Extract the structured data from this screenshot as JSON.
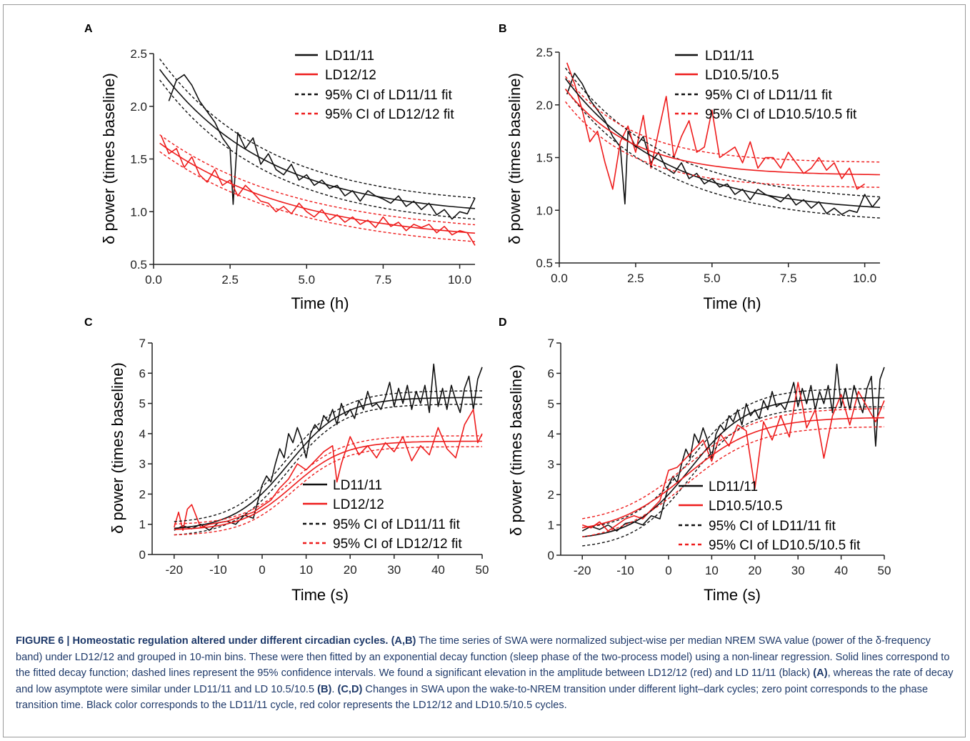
{
  "colors": {
    "black_series": "#111111",
    "red_series": "#ee1c1c",
    "caption_text": "#1f3a6a",
    "frame": "#9a9a9a"
  },
  "panels": [
    {
      "id": "A",
      "label": "A",
      "xlabel": "Time (h)",
      "ylabel": "δ power (times baseline)",
      "xticks": [
        "0.0",
        "2.5",
        "5.0",
        "7.5",
        "10.0"
      ],
      "yticks": [
        "0.5",
        "1.0",
        "1.5",
        "2.0",
        "2.5"
      ],
      "legend": [
        "LD11/11",
        "LD12/12",
        "95% CI of LD11/11 fit",
        "95% CI of LD12/12 fit"
      ]
    },
    {
      "id": "B",
      "label": "B",
      "xlabel": "Time (h)",
      "ylabel": "δ power (times baseline)",
      "xticks": [
        "0.0",
        "2.5",
        "5.0",
        "7.5",
        "10.0"
      ],
      "yticks": [
        "0.5",
        "1.0",
        "1.5",
        "2.0",
        "2.5"
      ],
      "legend": [
        "LD11/11",
        "LD10.5/10.5",
        "95% CI of LD11/11 fit",
        "95% CI of LD10.5/10.5 fit"
      ]
    },
    {
      "id": "C",
      "label": "C",
      "xlabel": "Time (s)",
      "ylabel": "δ power (times baseline)",
      "xticks": [
        "-20",
        "-10",
        "0",
        "10",
        "20",
        "30",
        "40",
        "50"
      ],
      "yticks": [
        "0",
        "1",
        "2",
        "3",
        "4",
        "5",
        "6",
        "7"
      ],
      "legend": [
        "LD11/11",
        "LD12/12",
        "95% CI of LD11/11 fit",
        "95% CI of LD12/12 fit"
      ]
    },
    {
      "id": "D",
      "label": "D",
      "xlabel": "Time (s)",
      "ylabel": "δ power (times baseline)",
      "xticks": [
        "-20",
        "-10",
        "0",
        "10",
        "20",
        "30",
        "40",
        "50"
      ],
      "yticks": [
        "0",
        "1",
        "2",
        "3",
        "4",
        "5",
        "6",
        "7"
      ],
      "legend": [
        "LD11/11",
        "LD10.5/10.5",
        "95% CI of LD11/11 fit",
        "95% CI of LD10.5/10.5 fit"
      ]
    }
  ],
  "chart_data": [
    {
      "panel": "A",
      "type": "line",
      "xlim": [
        0,
        10.5
      ],
      "ylim": [
        0.5,
        2.5
      ],
      "series": [
        {
          "name": "LD11/11",
          "color": "#111111",
          "style": "solid",
          "kind": "raw",
          "x": [
            0.5,
            0.75,
            1.0,
            1.25,
            1.5,
            1.75,
            2.0,
            2.25,
            2.5,
            2.6,
            2.75,
            3.0,
            3.25,
            3.5,
            3.75,
            4.0,
            4.25,
            4.5,
            4.75,
            5.0,
            5.25,
            5.5,
            5.75,
            6.0,
            6.25,
            6.5,
            6.75,
            7.0,
            7.25,
            7.5,
            7.75,
            8.0,
            8.25,
            8.5,
            8.75,
            9.0,
            9.25,
            9.5,
            9.75,
            10.0,
            10.25,
            10.5
          ],
          "y": [
            2.05,
            2.25,
            2.3,
            2.2,
            2.05,
            1.95,
            1.85,
            1.7,
            1.6,
            1.07,
            1.75,
            1.6,
            1.7,
            1.45,
            1.55,
            1.4,
            1.35,
            1.45,
            1.3,
            1.35,
            1.25,
            1.3,
            1.22,
            1.25,
            1.15,
            1.2,
            1.1,
            1.2,
            1.15,
            1.12,
            1.08,
            1.15,
            1.05,
            1.1,
            1.02,
            1.08,
            0.97,
            1.02,
            0.93,
            1.0,
            0.98,
            1.13
          ]
        },
        {
          "name": "LD12/12",
          "color": "#ee1c1c",
          "style": "solid",
          "kind": "raw",
          "x": [
            0.25,
            0.5,
            0.75,
            1.0,
            1.25,
            1.5,
            1.75,
            2.0,
            2.25,
            2.5,
            2.75,
            3.0,
            3.25,
            3.5,
            3.75,
            4.0,
            4.25,
            4.5,
            4.75,
            5.0,
            5.25,
            5.5,
            5.75,
            6.0,
            6.25,
            6.5,
            6.75,
            7.0,
            7.25,
            7.5,
            7.75,
            8.0,
            8.25,
            8.5,
            8.75,
            9.0,
            9.25,
            9.5,
            9.75,
            10.0,
            10.25,
            10.5
          ],
          "y": [
            1.72,
            1.55,
            1.6,
            1.42,
            1.52,
            1.35,
            1.28,
            1.4,
            1.25,
            1.3,
            1.15,
            1.25,
            1.18,
            1.1,
            1.08,
            1.0,
            1.05,
            0.98,
            1.08,
            1.0,
            0.95,
            1.02,
            0.92,
            0.97,
            0.9,
            0.95,
            0.88,
            0.92,
            0.85,
            0.95,
            0.86,
            0.9,
            0.82,
            0.88,
            0.85,
            0.88,
            0.8,
            0.86,
            0.78,
            0.82,
            0.8,
            0.68
          ]
        },
        {
          "name": "LD11/11 fit",
          "color": "#111111",
          "style": "fit",
          "model": "decay",
          "x0": 0.2,
          "y0": 2.35,
          "asym": 0.95,
          "tau": 3.6,
          "ci": 0.1
        },
        {
          "name": "LD12/12 fit",
          "color": "#ee1c1c",
          "style": "fit",
          "model": "decay",
          "x0": 0.2,
          "y0": 1.65,
          "asym": 0.7,
          "tau": 4.5,
          "ci": 0.08
        }
      ]
    },
    {
      "panel": "B",
      "type": "line",
      "xlim": [
        0,
        10.5
      ],
      "ylim": [
        0.5,
        2.5
      ],
      "series": [
        {
          "name": "LD11/11",
          "color": "#111111",
          "style": "solid",
          "kind": "raw",
          "x": [
            0.25,
            0.5,
            0.75,
            1.0,
            1.25,
            1.5,
            1.75,
            2.0,
            2.15,
            2.25,
            2.5,
            2.75,
            3.0,
            3.25,
            3.5,
            3.75,
            4.0,
            4.25,
            4.5,
            4.75,
            5.0,
            5.25,
            5.5,
            5.75,
            6.0,
            6.25,
            6.5,
            6.75,
            7.0,
            7.25,
            7.5,
            7.75,
            8.0,
            8.25,
            8.5,
            8.75,
            9.0,
            9.25,
            9.5,
            9.75,
            10.0,
            10.25,
            10.5
          ],
          "y": [
            2.1,
            2.3,
            2.2,
            2.05,
            1.95,
            1.85,
            1.7,
            1.6,
            1.06,
            1.75,
            1.6,
            1.7,
            1.45,
            1.55,
            1.4,
            1.35,
            1.45,
            1.3,
            1.35,
            1.25,
            1.3,
            1.22,
            1.25,
            1.15,
            1.2,
            1.1,
            1.2,
            1.15,
            1.12,
            1.08,
            1.15,
            1.05,
            1.1,
            1.02,
            1.08,
            0.97,
            1.02,
            0.96,
            1.0,
            0.98,
            1.15,
            1.03,
            1.12
          ]
        },
        {
          "name": "LD10.5/10.5",
          "color": "#ee1c1c",
          "style": "solid",
          "kind": "raw",
          "x": [
            0.25,
            0.5,
            0.75,
            1.0,
            1.25,
            1.5,
            1.75,
            2.0,
            2.25,
            2.5,
            2.75,
            3.0,
            3.25,
            3.5,
            3.75,
            4.0,
            4.25,
            4.5,
            4.75,
            5.0,
            5.25,
            5.5,
            5.75,
            6.0,
            6.25,
            6.5,
            6.75,
            7.0,
            7.25,
            7.5,
            7.75,
            8.0,
            8.25,
            8.5,
            8.75,
            9.0,
            9.25,
            9.5,
            9.75,
            10.0
          ],
          "y": [
            2.4,
            2.2,
            1.95,
            1.65,
            1.75,
            1.45,
            1.2,
            1.65,
            1.8,
            1.55,
            1.9,
            1.4,
            1.75,
            2.08,
            1.5,
            1.7,
            1.85,
            1.55,
            1.6,
            1.95,
            1.5,
            1.55,
            1.6,
            1.45,
            1.65,
            1.4,
            1.5,
            1.5,
            1.4,
            1.55,
            1.45,
            1.35,
            1.4,
            1.5,
            1.38,
            1.45,
            1.3,
            1.4,
            1.2,
            1.25
          ]
        },
        {
          "name": "LD11/11 fit",
          "color": "#111111",
          "style": "fit",
          "model": "decay",
          "x0": 0.2,
          "y0": 2.25,
          "asym": 0.97,
          "tau": 3.3,
          "ci": 0.1
        },
        {
          "name": "LD10.5/10.5 fit",
          "color": "#ee1c1c",
          "style": "fit",
          "model": "decay",
          "x0": 0.2,
          "y0": 2.15,
          "asym": 1.33,
          "tau": 2.2,
          "ci": 0.12
        }
      ]
    },
    {
      "panel": "C",
      "type": "line",
      "xlim": [
        -25,
        50
      ],
      "ylim": [
        0,
        7
      ],
      "series": [
        {
          "name": "LD11/11",
          "color": "#111111",
          "style": "solid",
          "kind": "raw",
          "x": [
            -20,
            -18,
            -16,
            -14,
            -12,
            -10,
            -8,
            -6,
            -4,
            -2,
            0,
            1,
            2,
            3,
            4,
            5,
            6,
            7,
            8,
            9,
            10,
            11,
            12,
            13,
            14,
            15,
            16,
            17,
            18,
            19,
            20,
            21,
            22,
            23,
            24,
            25,
            26,
            27,
            28,
            29,
            30,
            31,
            32,
            33,
            34,
            35,
            36,
            37,
            38,
            39,
            40,
            41,
            42,
            43,
            44,
            45,
            46,
            47,
            48,
            49,
            50
          ],
          "y": [
            0.8,
            0.95,
            0.85,
            1.0,
            0.8,
            1.05,
            1.1,
            1.0,
            1.3,
            1.2,
            2.3,
            2.6,
            2.4,
            3.0,
            3.5,
            3.2,
            4.0,
            3.7,
            4.2,
            3.8,
            3.2,
            4.0,
            4.3,
            4.1,
            4.6,
            4.4,
            4.8,
            4.3,
            5.0,
            4.6,
            4.8,
            4.5,
            5.1,
            4.8,
            5.4,
            4.9,
            5.0,
            4.8,
            5.2,
            5.7,
            4.9,
            5.5,
            5.0,
            5.6,
            4.8,
            5.4,
            5.0,
            5.6,
            4.7,
            6.3,
            4.9,
            5.5,
            4.8,
            5.6,
            5.1,
            4.7,
            5.5,
            5.9,
            4.8,
            5.8,
            6.2
          ]
        },
        {
          "name": "LD12/12",
          "color": "#ee1c1c",
          "style": "solid",
          "kind": "raw",
          "x": [
            -20,
            -19,
            -18,
            -17,
            -16,
            -14,
            -12,
            -10,
            -8,
            -6,
            -4,
            -2,
            0,
            2,
            4,
            6,
            8,
            10,
            12,
            14,
            16,
            17,
            18,
            20,
            22,
            24,
            26,
            28,
            30,
            32,
            34,
            36,
            38,
            40,
            42,
            44,
            46,
            48,
            49,
            50
          ],
          "y": [
            0.9,
            1.4,
            0.8,
            1.5,
            1.65,
            0.9,
            1.0,
            1.05,
            1.1,
            1.2,
            1.3,
            1.4,
            1.6,
            1.8,
            2.2,
            2.5,
            3.0,
            2.8,
            3.1,
            3.4,
            3.6,
            2.4,
            3.0,
            3.9,
            3.3,
            3.6,
            3.2,
            3.7,
            3.4,
            3.9,
            3.1,
            3.6,
            3.3,
            4.2,
            3.5,
            3.2,
            4.3,
            4.8,
            3.7,
            4.0
          ]
        },
        {
          "name": "LD11/11 fit",
          "color": "#111111",
          "style": "fit",
          "model": "sigmoid",
          "lo": 0.8,
          "hi": 5.2,
          "mid": 6,
          "k": 0.16,
          "ci": 0.22
        },
        {
          "name": "LD12/12 fit",
          "color": "#ee1c1c",
          "style": "fit",
          "model": "sigmoid",
          "lo": 0.8,
          "hi": 3.75,
          "mid": 7,
          "k": 0.17,
          "ci": 0.18
        }
      ]
    },
    {
      "panel": "D",
      "type": "line",
      "xlim": [
        -25,
        50
      ],
      "ylim": [
        0,
        7
      ],
      "series": [
        {
          "name": "LD11/11",
          "color": "#111111",
          "style": "solid",
          "kind": "raw",
          "x": [
            -20,
            -18,
            -16,
            -14,
            -12,
            -10,
            -8,
            -6,
            -4,
            -2,
            0,
            1,
            2,
            3,
            4,
            5,
            6,
            7,
            8,
            9,
            10,
            11,
            12,
            13,
            14,
            15,
            16,
            17,
            18,
            19,
            20,
            21,
            22,
            23,
            24,
            25,
            26,
            27,
            28,
            29,
            30,
            31,
            32,
            33,
            34,
            35,
            36,
            37,
            38,
            39,
            40,
            41,
            42,
            43,
            44,
            45,
            46,
            47,
            48,
            49,
            50
          ],
          "y": [
            0.8,
            0.95,
            0.85,
            1.0,
            0.8,
            1.05,
            1.1,
            1.0,
            1.3,
            1.2,
            2.3,
            2.6,
            2.4,
            3.0,
            3.5,
            3.2,
            4.0,
            3.7,
            4.2,
            3.8,
            3.2,
            4.0,
            4.3,
            4.1,
            4.6,
            4.4,
            4.8,
            4.3,
            5.0,
            4.6,
            4.8,
            4.5,
            5.1,
            4.8,
            5.4,
            4.9,
            5.0,
            4.8,
            5.2,
            5.7,
            4.9,
            5.5,
            5.0,
            5.6,
            4.8,
            5.4,
            5.0,
            5.6,
            4.7,
            6.3,
            4.9,
            5.5,
            4.8,
            5.6,
            5.1,
            4.7,
            5.5,
            5.9,
            3.6,
            5.8,
            6.2
          ]
        },
        {
          "name": "LD10.5/10.5",
          "color": "#ee1c1c",
          "style": "solid",
          "kind": "raw",
          "x": [
            -20,
            -18,
            -16,
            -14,
            -12,
            -10,
            -8,
            -6,
            -4,
            -2,
            0,
            2,
            4,
            6,
            8,
            10,
            12,
            14,
            16,
            18,
            20,
            22,
            24,
            26,
            28,
            30,
            32,
            34,
            36,
            38,
            40,
            42,
            44,
            46,
            48,
            50
          ],
          "y": [
            1.0,
            0.9,
            1.1,
            0.8,
            1.0,
            1.2,
            1.3,
            1.2,
            1.5,
            1.8,
            2.8,
            2.9,
            3.2,
            3.5,
            3.8,
            3.1,
            4.0,
            3.6,
            4.3,
            4.1,
            2.2,
            4.4,
            3.8,
            4.6,
            3.9,
            5.7,
            4.2,
            4.8,
            3.2,
            4.6,
            5.3,
            4.3,
            5.4,
            4.9,
            4.4,
            5.1
          ]
        },
        {
          "name": "LD11/11 fit",
          "color": "#111111",
          "style": "fit",
          "model": "sigmoid",
          "lo": 0.5,
          "hi": 5.2,
          "mid": 5,
          "k": 0.15,
          "ci": 0.3
        },
        {
          "name": "LD10.5/10.5 fit",
          "color": "#ee1c1c",
          "style": "fit",
          "model": "sigmoid",
          "lo": 0.7,
          "hi": 4.55,
          "mid": 4,
          "k": 0.12,
          "ci": 0.3
        }
      ]
    }
  ],
  "caption": {
    "figure_label": "FIGURE 6 | Homeostatic regulation altered under different circadian cycles.",
    "ref_ab": "(A,B)",
    "text_1": " The time series of SWA were normalized subject-wise per median NREM SWA value (power of the δ-frequency band) under LD12/12 and grouped in 10-min bins. These were then fitted by an exponential decay function (sleep phase of the two-process model) using a non-linear regression. Solid lines correspond to the fitted decay function; dashed lines represent the 95% confidence intervals. We found a significant elevation in the amplitude between LD12/12 (red) and LD 11/11 (black) ",
    "ref_a": "(A)",
    "text_2": ", whereas the rate of decay and low asymptote were similar under LD11/11 and LD 10.5/10.5 ",
    "ref_b": "(B)",
    "text_3": ". ",
    "ref_cd": "(C,D)",
    "text_4": " Changes in SWA upon the wake-to-NREM transition under different light–dark cycles; zero point corresponds to the phase transition time. Black color corresponds to the LD11/11 cycle, red color represents the LD12/12 and LD10.5/10.5 cycles."
  }
}
